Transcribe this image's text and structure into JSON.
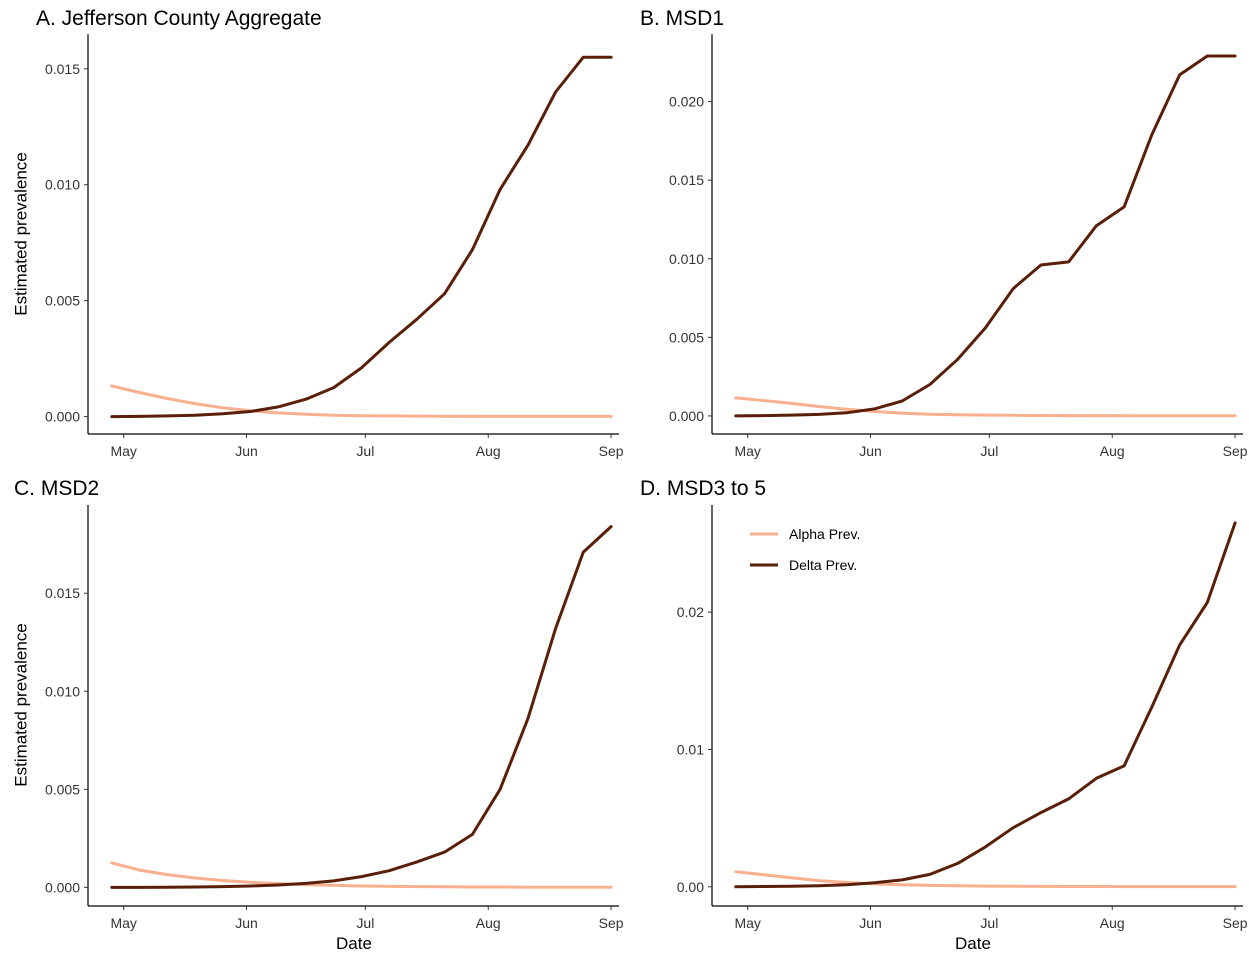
{
  "colors": {
    "alpha": "#F8B08E",
    "delta": "#5A1F08",
    "axis": "#000000"
  },
  "legend": {
    "position": "inside-top-left",
    "panel": 3,
    "items": [
      "Alpha Prev.",
      "Delta Prev."
    ]
  },
  "chart_data": [
    {
      "type": "line",
      "title": "A. Jefferson County Aggregate",
      "xlabel": "",
      "ylabel": "Estimated prevalence",
      "x_ticks": [
        "May",
        "Jun",
        "Jul",
        "Aug",
        "Sep"
      ],
      "y_ticks": [
        "0.000",
        "0.005",
        "0.010",
        "0.015"
      ],
      "ylim": [
        -0.00075,
        0.0165
      ],
      "xlim": [
        "2021-04-22",
        "2021-09-03"
      ],
      "grid": false,
      "series": [
        {
          "name": "Alpha Prev.",
          "x": [
            "2021-04-28",
            "2021-05-05",
            "2021-05-12",
            "2021-05-19",
            "2021-05-26",
            "2021-06-02",
            "2021-06-09",
            "2021-06-16",
            "2021-06-23",
            "2021-06-30",
            "2021-07-07",
            "2021-07-14",
            "2021-07-21",
            "2021-07-28",
            "2021-08-04",
            "2021-08-11",
            "2021-08-18",
            "2021-08-25",
            "2021-09-01"
          ],
          "values": [
            0.00132,
            0.00104,
            0.00078,
            0.00056,
            0.00038,
            0.00025,
            0.00016,
            0.0001,
            6e-05,
            4e-05,
            3e-05,
            2e-05,
            1.5e-05,
            1e-05,
            1e-05,
            1e-05,
            1e-05,
            1e-05,
            1e-05
          ]
        },
        {
          "name": "Delta Prev.",
          "x": [
            "2021-04-28",
            "2021-05-05",
            "2021-05-12",
            "2021-05-19",
            "2021-05-26",
            "2021-06-02",
            "2021-06-09",
            "2021-06-16",
            "2021-06-23",
            "2021-06-30",
            "2021-07-07",
            "2021-07-14",
            "2021-07-21",
            "2021-07-28",
            "2021-08-04",
            "2021-08-11",
            "2021-08-18",
            "2021-08-25",
            "2021-09-01"
          ],
          "values": [
            0.0,
            1e-05,
            3e-05,
            6e-05,
            0.00012,
            0.00022,
            0.00042,
            0.00075,
            0.00125,
            0.0021,
            0.0032,
            0.0042,
            0.0053,
            0.0072,
            0.0098,
            0.0117,
            0.014,
            0.0155,
            0.0155
          ]
        }
      ]
    },
    {
      "type": "line",
      "title": "B. MSD1",
      "xlabel": "",
      "ylabel": "",
      "x_ticks": [
        "May",
        "Jun",
        "Jul",
        "Aug",
        "Sep"
      ],
      "y_ticks": [
        "0.000",
        "0.005",
        "0.010",
        "0.015",
        "0.020"
      ],
      "ylim": [
        -0.00115,
        0.0243
      ],
      "xlim": [
        "2021-04-22",
        "2021-09-03"
      ],
      "grid": false,
      "series": [
        {
          "name": "Alpha Prev.",
          "x": [
            "2021-04-28",
            "2021-05-05",
            "2021-05-12",
            "2021-05-19",
            "2021-05-26",
            "2021-06-02",
            "2021-06-09",
            "2021-06-16",
            "2021-06-23",
            "2021-06-30",
            "2021-07-07",
            "2021-07-14",
            "2021-07-21",
            "2021-07-28",
            "2021-08-04",
            "2021-08-11",
            "2021-08-18",
            "2021-08-25",
            "2021-09-01"
          ],
          "values": [
            0.00115,
            0.00098,
            0.0008,
            0.0006,
            0.00042,
            0.00028,
            0.00018,
            0.00011,
            7e-05,
            5e-05,
            4e-05,
            3e-05,
            2e-05,
            2e-05,
            1e-05,
            1e-05,
            1e-05,
            1e-05,
            1e-05
          ]
        },
        {
          "name": "Delta Prev.",
          "x": [
            "2021-04-28",
            "2021-05-05",
            "2021-05-12",
            "2021-05-19",
            "2021-05-26",
            "2021-06-02",
            "2021-06-09",
            "2021-06-16",
            "2021-06-23",
            "2021-06-30",
            "2021-07-07",
            "2021-07-14",
            "2021-07-21",
            "2021-07-28",
            "2021-08-04",
            "2021-08-11",
            "2021-08-18",
            "2021-08-25",
            "2021-09-01"
          ],
          "values": [
            0.0,
            2e-05,
            5e-05,
            0.0001,
            0.0002,
            0.00045,
            0.00095,
            0.002,
            0.0036,
            0.0056,
            0.0081,
            0.0096,
            0.0098,
            0.0121,
            0.0133,
            0.0179,
            0.0217,
            0.0229,
            0.0229
          ]
        }
      ]
    },
    {
      "type": "line",
      "title": "C. MSD2",
      "xlabel": "Date",
      "ylabel": "Estimated prevalence",
      "x_ticks": [
        "May",
        "Jun",
        "Jul",
        "Aug",
        "Sep"
      ],
      "y_ticks": [
        "0.000",
        "0.005",
        "0.010",
        "0.015"
      ],
      "ylim": [
        -0.00095,
        0.0195
      ],
      "xlim": [
        "2021-04-22",
        "2021-09-03"
      ],
      "grid": false,
      "series": [
        {
          "name": "Alpha Prev.",
          "x": [
            "2021-04-28",
            "2021-05-05",
            "2021-05-12",
            "2021-05-19",
            "2021-05-26",
            "2021-06-02",
            "2021-06-09",
            "2021-06-16",
            "2021-06-23",
            "2021-06-30",
            "2021-07-07",
            "2021-07-14",
            "2021-07-21",
            "2021-07-28",
            "2021-08-04",
            "2021-08-11",
            "2021-08-18",
            "2021-08-25",
            "2021-09-01"
          ],
          "values": [
            0.00125,
            0.00088,
            0.00065,
            0.00048,
            0.00035,
            0.00026,
            0.00019,
            0.00014,
            0.0001,
            7e-05,
            5e-05,
            4e-05,
            3e-05,
            2e-05,
            2e-05,
            1e-05,
            1e-05,
            1e-05,
            1e-05
          ]
        },
        {
          "name": "Delta Prev.",
          "x": [
            "2021-04-28",
            "2021-05-05",
            "2021-05-12",
            "2021-05-19",
            "2021-05-26",
            "2021-06-02",
            "2021-06-09",
            "2021-06-16",
            "2021-06-23",
            "2021-06-30",
            "2021-07-07",
            "2021-07-14",
            "2021-07-21",
            "2021-07-28",
            "2021-08-04",
            "2021-08-11",
            "2021-08-18",
            "2021-08-25",
            "2021-09-01"
          ],
          "values": [
            0.0,
            0.0,
            1e-05,
            2e-05,
            4e-05,
            7e-05,
            0.00012,
            0.0002,
            0.00033,
            0.00055,
            0.00085,
            0.0013,
            0.0018,
            0.0027,
            0.005,
            0.0086,
            0.0132,
            0.0171,
            0.0184
          ]
        }
      ]
    },
    {
      "type": "line",
      "title": "D. MSD3 to 5",
      "xlabel": "Date",
      "ylabel": "",
      "x_ticks": [
        "May",
        "Jun",
        "Jul",
        "Aug",
        "Sep"
      ],
      "y_ticks": [
        "0.00",
        "0.01",
        "0.02"
      ],
      "ylim": [
        -0.0014,
        0.0278
      ],
      "xlim": [
        "2021-04-22",
        "2021-09-03"
      ],
      "grid": false,
      "series": [
        {
          "name": "Alpha Prev.",
          "x": [
            "2021-04-28",
            "2021-05-05",
            "2021-05-12",
            "2021-05-19",
            "2021-05-26",
            "2021-06-02",
            "2021-06-09",
            "2021-06-16",
            "2021-06-23",
            "2021-06-30",
            "2021-07-07",
            "2021-07-14",
            "2021-07-21",
            "2021-07-28",
            "2021-08-04",
            "2021-08-11",
            "2021-08-18",
            "2021-08-25",
            "2021-09-01"
          ],
          "values": [
            0.0011,
            0.00088,
            0.00065,
            0.00045,
            0.00031,
            0.00021,
            0.00015,
            0.0001,
            7e-05,
            5e-05,
            4e-05,
            3e-05,
            2e-05,
            2e-05,
            1e-05,
            1e-05,
            1e-05,
            1e-05,
            1e-05
          ]
        },
        {
          "name": "Delta Prev.",
          "x": [
            "2021-04-28",
            "2021-05-05",
            "2021-05-12",
            "2021-05-19",
            "2021-05-26",
            "2021-06-02",
            "2021-06-09",
            "2021-06-16",
            "2021-06-23",
            "2021-06-30",
            "2021-07-07",
            "2021-07-14",
            "2021-07-21",
            "2021-07-28",
            "2021-08-04",
            "2021-08-11",
            "2021-08-18",
            "2021-08-25",
            "2021-09-01"
          ],
          "values": [
            0.0,
            2e-05,
            4e-05,
            8e-05,
            0.00015,
            0.0003,
            0.0005,
            0.0009,
            0.0017,
            0.0029,
            0.0043,
            0.0054,
            0.0064,
            0.0079,
            0.0088,
            0.0131,
            0.0176,
            0.0207,
            0.0265
          ]
        }
      ]
    }
  ]
}
